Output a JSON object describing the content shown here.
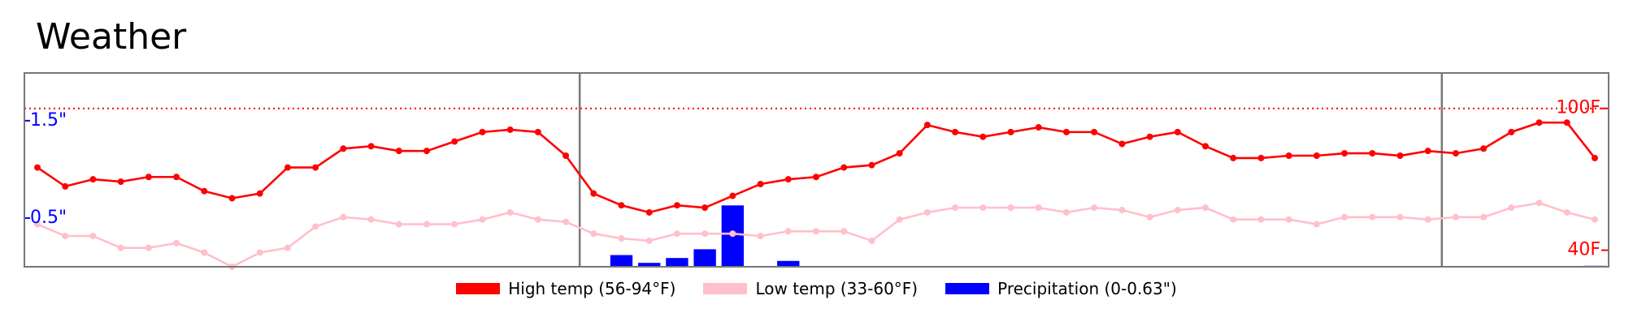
{
  "chart_data": {
    "type": "line",
    "title": "Weather",
    "series": [
      {
        "name": "High temp (56-94°F)",
        "color": "red",
        "axis": "y2",
        "markers": true,
        "values": [
          75,
          67,
          70,
          69,
          71,
          71,
          65,
          62,
          64,
          75,
          75,
          83,
          84,
          82,
          82,
          86,
          90,
          91,
          90,
          80,
          64,
          59,
          56,
          59,
          58,
          63,
          68,
          70,
          71,
          75,
          76,
          81,
          93,
          90,
          88,
          90,
          92,
          90,
          90,
          85,
          88,
          90,
          84,
          79,
          79,
          80,
          80,
          81,
          81,
          80,
          82,
          81,
          83,
          90,
          94,
          94,
          79
        ]
      },
      {
        "name": "Low temp (33-60°F)",
        "color": "pink",
        "axis": "y2",
        "markers": true,
        "values": [
          51,
          46,
          46,
          41,
          41,
          43,
          39,
          33,
          39,
          41,
          50,
          54,
          53,
          51,
          51,
          51,
          53,
          56,
          53,
          52,
          47,
          45,
          44,
          47,
          47,
          47,
          46,
          48,
          48,
          48,
          44,
          53,
          56,
          58,
          58,
          58,
          58,
          56,
          58,
          57,
          54,
          57,
          58,
          53,
          53,
          53,
          51,
          54,
          54,
          54,
          53,
          54,
          54,
          58,
          60,
          56,
          53
        ]
      },
      {
        "name": "Precipitation (0-0.63\")",
        "color": "blue",
        "type": "bar",
        "values": [
          0,
          0,
          0,
          0,
          0,
          0,
          0,
          0,
          0,
          0,
          0,
          0,
          0,
          0,
          0,
          0,
          0,
          0,
          0,
          0,
          0,
          0.12,
          0.04,
          0.09,
          0.18,
          0.63,
          0,
          0.06,
          0,
          0,
          0,
          0,
          0,
          0,
          0,
          0,
          0,
          0,
          0,
          0,
          0,
          0,
          0,
          0,
          0,
          0,
          0,
          0,
          0,
          0,
          0,
          0,
          0,
          0,
          0,
          0,
          0.01
        ]
      }
    ],
    "ylim": [
      0,
      1.99
    ],
    "yticks": [
      {
        "value": 0.5,
        "label": "0.5\""
      },
      {
        "value": 1.5,
        "label": "1.5\""
      }
    ],
    "y2lim": [
      33,
      115
    ],
    "y2ticks": [
      {
        "value": 40,
        "label": "40F"
      },
      {
        "value": 100,
        "label": "100F"
      }
    ],
    "reference_line": {
      "axis": "y2",
      "value": 100,
      "color": "red"
    },
    "vlines": [
      19.5,
      50.5
    ],
    "tick_color": "blue",
    "tick2_color": "red"
  }
}
